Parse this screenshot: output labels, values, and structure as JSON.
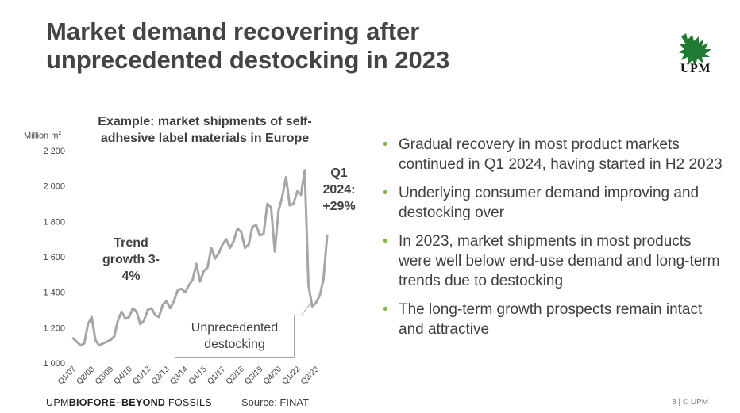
{
  "slide": {
    "title_line1": "Market demand recovering after",
    "title_line2": "unprecedented destocking in 2023",
    "logo_text": "UPM",
    "footer": "3 | © UPM",
    "tagline_prefix": "UPM",
    "tagline_bold": "BIOFORE–BEYOND",
    "tagline_suffix": " FOSSILS",
    "source": "Source: FINAT",
    "accent_color": "#7dbb42",
    "logo_color": "#1f7a34"
  },
  "bullets": [
    "Gradual recovery in most product markets continued in Q1 2024, having started in H2 2023",
    "Underlying consumer demand improving and destocking over",
    "In 2023, market shipments in most products were well below end-use demand and long-term trends due to destocking",
    "The long-term growth prospects remain intact and attractive"
  ],
  "annotations": {
    "trend": "Trend growth 3-4%",
    "q1_line1": "Q1",
    "q1_line2": "2024:",
    "q1_line3": "+29%",
    "callout": "Unprecedented destocking"
  },
  "chart_data": {
    "type": "line",
    "title": "Example: market shipments of self-adhesive label materials in Europe",
    "ylabel": "Million m²",
    "xlabel": "",
    "ylim": [
      1000,
      2200
    ],
    "yticks": [
      1000,
      1200,
      1400,
      1600,
      1800,
      2000,
      2200
    ],
    "ytick_labels": [
      "1 000",
      "1 200",
      "1 400",
      "1 600",
      "1 800",
      "2 000",
      "2 200"
    ],
    "xtick_labels": [
      "Q1/07",
      "Q2/08",
      "Q3/09",
      "Q4/10",
      "Q1/12",
      "Q2/13",
      "Q3/14",
      "Q4/15",
      "Q1/17",
      "Q2/18",
      "Q3/19",
      "Q4/20",
      "Q1/22",
      "Q2/23"
    ],
    "xtick_index": [
      0,
      5,
      10,
      15,
      20,
      25,
      30,
      35,
      40,
      45,
      50,
      55,
      60,
      65
    ],
    "line_color": "#a6a6a6",
    "series": [
      {
        "name": "Market shipments",
        "categories": [
          "Q1/07",
          "Q2/07",
          "Q3/07",
          "Q4/07",
          "Q1/08",
          "Q2/08",
          "Q3/08",
          "Q4/08",
          "Q1/09",
          "Q2/09",
          "Q3/09",
          "Q4/09",
          "Q1/10",
          "Q2/10",
          "Q3/10",
          "Q4/10",
          "Q1/11",
          "Q2/11",
          "Q3/11",
          "Q4/11",
          "Q1/12",
          "Q2/12",
          "Q3/12",
          "Q4/12",
          "Q1/13",
          "Q2/13",
          "Q3/13",
          "Q4/13",
          "Q1/14",
          "Q2/14",
          "Q3/14",
          "Q4/14",
          "Q1/15",
          "Q2/15",
          "Q3/15",
          "Q4/15",
          "Q1/16",
          "Q2/16",
          "Q3/16",
          "Q4/16",
          "Q1/17",
          "Q2/17",
          "Q3/17",
          "Q4/17",
          "Q1/18",
          "Q2/18",
          "Q3/18",
          "Q4/18",
          "Q1/19",
          "Q2/19",
          "Q3/19",
          "Q4/19",
          "Q1/20",
          "Q2/20",
          "Q3/20",
          "Q4/20",
          "Q1/21",
          "Q2/21",
          "Q3/21",
          "Q4/21",
          "Q1/22",
          "Q2/22",
          "Q3/22",
          "Q4/22",
          "Q1/23",
          "Q2/23",
          "Q3/23",
          "Q4/23",
          "Q1/24"
        ],
        "values": [
          1140,
          1120,
          1100,
          1110,
          1220,
          1260,
          1130,
          1100,
          1110,
          1120,
          1130,
          1150,
          1240,
          1290,
          1250,
          1260,
          1310,
          1290,
          1220,
          1240,
          1300,
          1310,
          1270,
          1260,
          1330,
          1350,
          1310,
          1350,
          1410,
          1420,
          1400,
          1440,
          1470,
          1560,
          1460,
          1520,
          1540,
          1650,
          1590,
          1620,
          1670,
          1700,
          1650,
          1690,
          1760,
          1740,
          1650,
          1670,
          1770,
          1780,
          1720,
          1730,
          1900,
          1880,
          1630,
          1860,
          1940,
          2050,
          1890,
          1900,
          1970,
          1950,
          2090,
          1440,
          1320,
          1340,
          1380,
          1470,
          1720
        ]
      }
    ]
  }
}
